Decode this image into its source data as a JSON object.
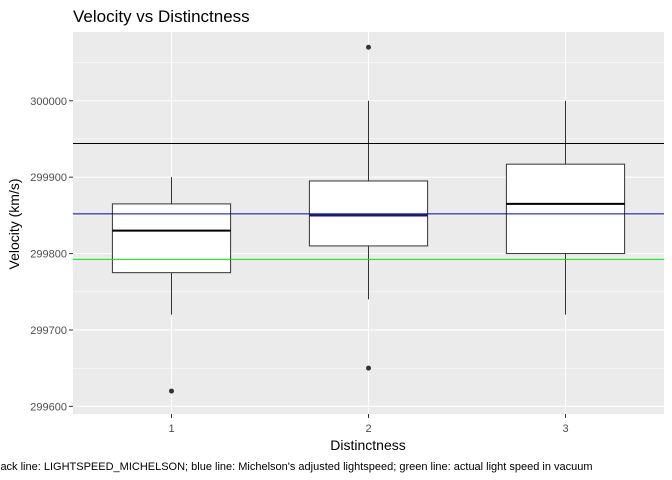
{
  "chart_data": {
    "type": "boxplot",
    "title": "Velocity vs Distinctness",
    "xlabel": "Distinctness",
    "ylabel": "Velocity (km/s)",
    "caption": "lack line: LIGHTSPEED_MICHELSON; blue line: Michelson's adjusted lightspeed; green line: actual light speed in vacuum",
    "categories": [
      "1",
      "2",
      "3"
    ],
    "ylim": [
      299590,
      300090
    ],
    "y_ticks": [
      299600,
      299700,
      299800,
      299900,
      300000
    ],
    "y_tick_labels": [
      "299600",
      "299700",
      "299800",
      "299900",
      "300000"
    ],
    "grid": true,
    "boxes": [
      {
        "category": "1",
        "whisker_low": 299720,
        "q1": 299775,
        "median": 299830,
        "q3": 299865,
        "whisker_high": 299900,
        "outliers": [
          299620
        ]
      },
      {
        "category": "2",
        "whisker_low": 299740,
        "q1": 299810,
        "median": 299850,
        "q3": 299895,
        "whisker_high": 300000,
        "outliers": [
          299650,
          300070
        ]
      },
      {
        "category": "3",
        "whisker_low": 299720,
        "q1": 299800,
        "median": 299865,
        "q3": 299917,
        "whisker_high": 300000,
        "outliers": []
      }
    ],
    "reference_lines": [
      {
        "label": "LIGHTSPEED_MICHELSON",
        "value": 299944,
        "color": "#000000"
      },
      {
        "label": "Michelson's adjusted lightspeed",
        "value": 299852,
        "color": "#0000cd"
      },
      {
        "label": "actual light speed in vacuum",
        "value": 299792.458,
        "color": "#00ee00"
      }
    ],
    "colors": {
      "panel_bg": "#ebebeb",
      "grid_major": "#ffffff",
      "box_fill": "#ffffff",
      "box_stroke": "#333333",
      "median_stroke": "#000000",
      "highlight_median": "#191970"
    }
  }
}
